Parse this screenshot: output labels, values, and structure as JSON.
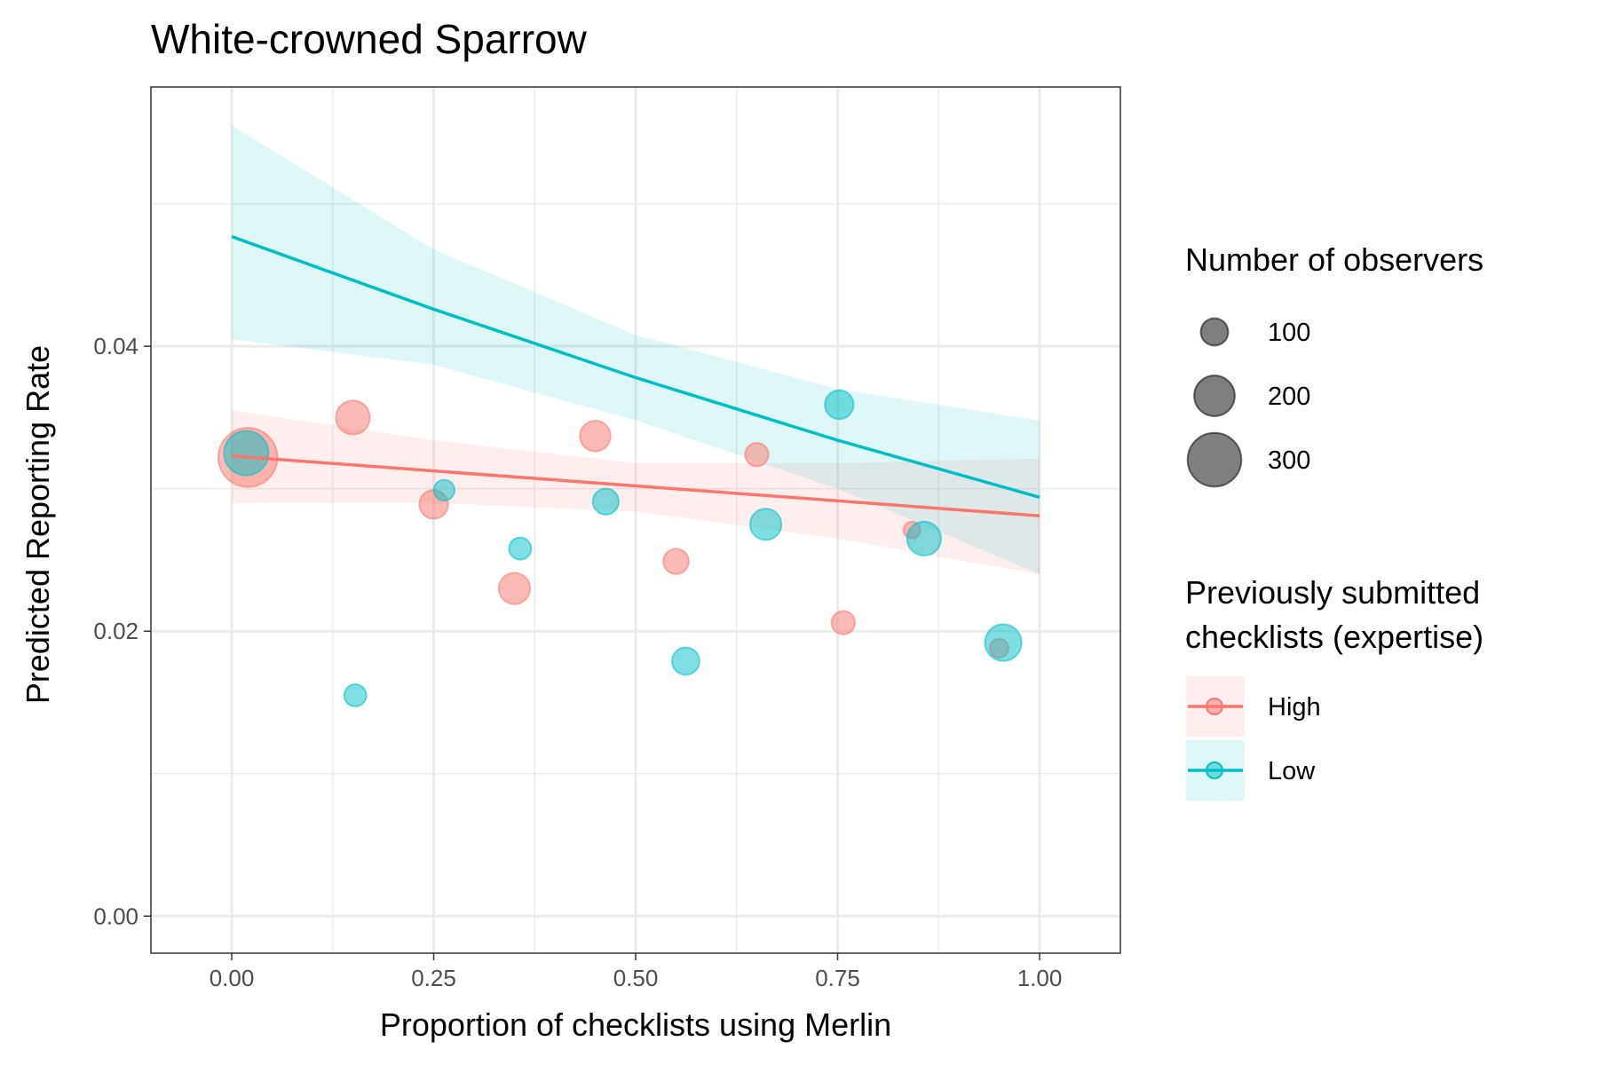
{
  "chart_data": {
    "type": "scatter",
    "title": "White-crowned Sparrow",
    "xlabel": "Proportion of checklists using Merlin",
    "ylabel": "Predicted Reporting Rate",
    "xlim": [
      -0.1,
      1.1
    ],
    "ylim": [
      -0.0026,
      0.0582
    ],
    "x_ticks": [
      0.0,
      0.25,
      0.5,
      0.75,
      1.0
    ],
    "x_tick_labels": [
      "0.00",
      "0.25",
      "0.50",
      "0.75",
      "1.00"
    ],
    "y_ticks": [
      0.0,
      0.02,
      0.04
    ],
    "y_tick_labels": [
      "0.00",
      "0.02",
      "0.04"
    ],
    "grid": true,
    "legend_position": "right",
    "size_legend": {
      "title": "Number of observers",
      "entries": [
        {
          "value": 100,
          "label": "100"
        },
        {
          "value": 200,
          "label": "200"
        },
        {
          "value": 300,
          "label": "300"
        }
      ]
    },
    "color_legend": {
      "title_lines": [
        "Previously submitted",
        "checklists (expertise)"
      ]
    },
    "series": [
      {
        "name": "High",
        "color": "#F8766D",
        "points": [
          {
            "x": 0.02,
            "y": 0.0322,
            "n": 340
          },
          {
            "x": 0.15,
            "y": 0.035,
            "n": 150
          },
          {
            "x": 0.25,
            "y": 0.0289,
            "n": 110
          },
          {
            "x": 0.35,
            "y": 0.023,
            "n": 130
          },
          {
            "x": 0.45,
            "y": 0.0337,
            "n": 125
          },
          {
            "x": 0.55,
            "y": 0.0249,
            "n": 85
          },
          {
            "x": 0.65,
            "y": 0.0324,
            "n": 70
          },
          {
            "x": 0.757,
            "y": 0.0206,
            "n": 70
          },
          {
            "x": 0.842,
            "y": 0.0271,
            "n": 20
          },
          {
            "x": 0.95,
            "y": 0.0188,
            "n": 35
          }
        ],
        "fit": {
          "x": [
            0.0,
            1.0
          ],
          "y": [
            0.0323,
            0.0281
          ]
        },
        "band": {
          "x": [
            0.0,
            0.25,
            0.5,
            0.75,
            1.0
          ],
          "lower": [
            0.029,
            0.029,
            0.0284,
            0.0265,
            0.024
          ],
          "upper": [
            0.0355,
            0.0334,
            0.0318,
            0.0318,
            0.0321
          ]
        }
      },
      {
        "name": "Low",
        "color": "#00BFC4",
        "points": [
          {
            "x": 0.018,
            "y": 0.0325,
            "n": 230
          },
          {
            "x": 0.153,
            "y": 0.0155,
            "n": 60
          },
          {
            "x": 0.263,
            "y": 0.0299,
            "n": 50
          },
          {
            "x": 0.357,
            "y": 0.0258,
            "n": 60
          },
          {
            "x": 0.463,
            "y": 0.0291,
            "n": 90
          },
          {
            "x": 0.562,
            "y": 0.0179,
            "n": 100
          },
          {
            "x": 0.661,
            "y": 0.0275,
            "n": 130
          },
          {
            "x": 0.752,
            "y": 0.0359,
            "n": 110
          },
          {
            "x": 0.857,
            "y": 0.0265,
            "n": 150
          },
          {
            "x": 0.955,
            "y": 0.0192,
            "n": 170
          }
        ],
        "fit": {
          "x": [
            0.0,
            0.25,
            0.5,
            0.75,
            1.0
          ],
          "y": [
            0.0477,
            0.0426,
            0.0378,
            0.0334,
            0.0294
          ]
        },
        "band": {
          "x": [
            0.0,
            0.25,
            0.5,
            0.75,
            1.0
          ],
          "lower": [
            0.0405,
            0.0387,
            0.0348,
            0.03,
            0.024
          ],
          "upper": [
            0.0555,
            0.0468,
            0.0408,
            0.037,
            0.0348
          ]
        }
      }
    ]
  }
}
